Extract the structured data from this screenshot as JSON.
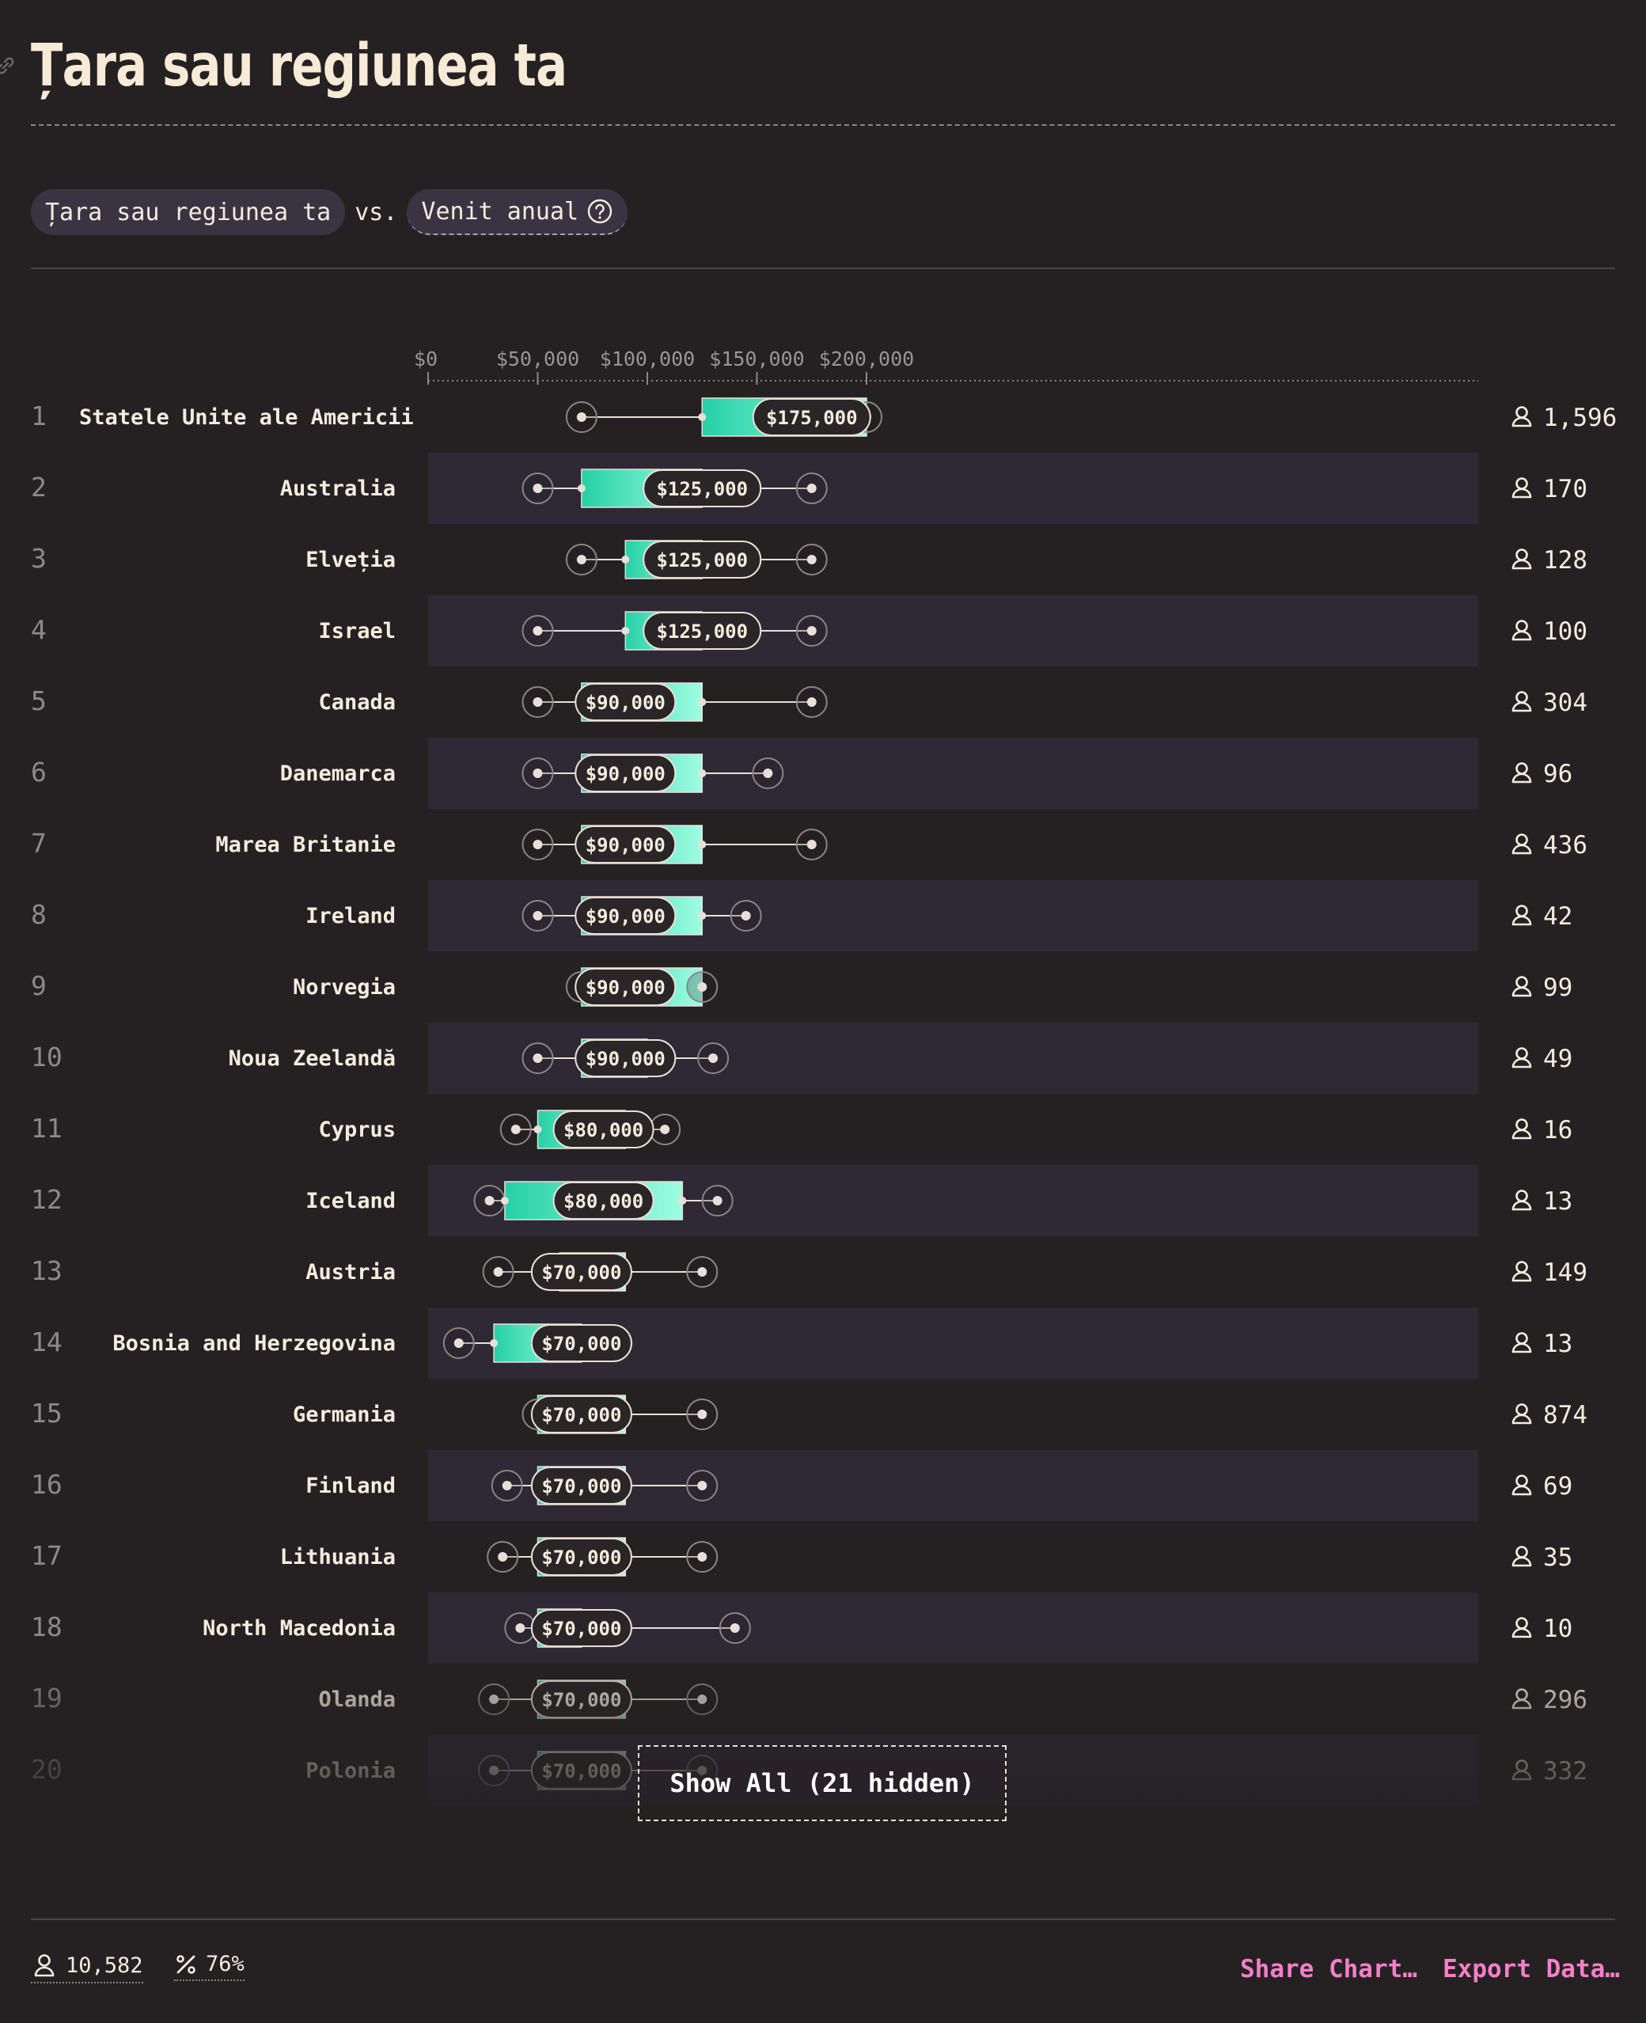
{
  "title": "Țara sau regiunea ta",
  "selectors": {
    "left": "Țara sau regiunea ta",
    "vs": "vs.",
    "right": "Venit anual"
  },
  "icons": {
    "link": "link-icon",
    "help": "help-circle-icon",
    "person": "person-icon",
    "percent": "percent-icon"
  },
  "colors": {
    "background": "#252122",
    "band": "#2f2935",
    "bar_start": "#25d0a6",
    "bar_end": "#9ffde2",
    "accent_link": "#f47fc7"
  },
  "chart_data": {
    "type": "box",
    "x_axis": {
      "min": 0,
      "max": 240000,
      "ticks": [
        0,
        50000,
        100000,
        150000,
        200000
      ],
      "tick_labels": [
        "$0",
        "$50,000",
        "$100,000",
        "$150,000",
        "$200,000"
      ]
    },
    "rows": [
      {
        "rank": "1",
        "name": "Statele Unite ale Americii",
        "min": 70000,
        "q1": 125000,
        "median": 175000,
        "q3": 200000,
        "max": 200000,
        "median_label": "$175,000",
        "count": "1,596"
      },
      {
        "rank": "2",
        "name": "Australia",
        "min": 50000,
        "q1": 70000,
        "median": 125000,
        "q3": 125000,
        "max": 175000,
        "median_label": "$125,000",
        "count": "170"
      },
      {
        "rank": "3",
        "name": "Elveția",
        "min": 70000,
        "q1": 90000,
        "median": 125000,
        "q3": 125000,
        "max": 175000,
        "median_label": "$125,000",
        "count": "128"
      },
      {
        "rank": "4",
        "name": "Israel",
        "min": 50000,
        "q1": 90000,
        "median": 125000,
        "q3": 125000,
        "max": 175000,
        "median_label": "$125,000",
        "count": "100"
      },
      {
        "rank": "5",
        "name": "Canada",
        "min": 50000,
        "q1": 70000,
        "median": 90000,
        "q3": 125000,
        "max": 175000,
        "median_label": "$90,000",
        "count": "304"
      },
      {
        "rank": "6",
        "name": "Danemarca",
        "min": 50000,
        "q1": 70000,
        "median": 90000,
        "q3": 125000,
        "max": 155000,
        "median_label": "$90,000",
        "count": "96"
      },
      {
        "rank": "7",
        "name": "Marea Britanie",
        "min": 50000,
        "q1": 70000,
        "median": 90000,
        "q3": 125000,
        "max": 175000,
        "median_label": "$90,000",
        "count": "436"
      },
      {
        "rank": "8",
        "name": "Ireland",
        "min": 50000,
        "q1": 70000,
        "median": 90000,
        "q3": 125000,
        "max": 145000,
        "median_label": "$90,000",
        "count": "42"
      },
      {
        "rank": "9",
        "name": "Norvegia",
        "min": 70000,
        "q1": 70000,
        "median": 90000,
        "q3": 125000,
        "max": 125000,
        "median_label": "$90,000",
        "count": "99"
      },
      {
        "rank": "10",
        "name": "Noua Zeelandă",
        "min": 50000,
        "q1": 70000,
        "median": 90000,
        "q3": 100000,
        "max": 130000,
        "median_label": "$90,000",
        "count": "49"
      },
      {
        "rank": "11",
        "name": "Cyprus",
        "min": 40000,
        "q1": 50000,
        "median": 80000,
        "q3": 90000,
        "max": 108000,
        "median_label": "$80,000",
        "count": "16"
      },
      {
        "rank": "12",
        "name": "Iceland",
        "min": 28000,
        "q1": 35000,
        "median": 80000,
        "q3": 116000,
        "max": 132000,
        "median_label": "$80,000",
        "count": "13"
      },
      {
        "rank": "13",
        "name": "Austria",
        "min": 32000,
        "q1": 60000,
        "median": 70000,
        "q3": 90000,
        "max": 125000,
        "median_label": "$70,000",
        "count": "149"
      },
      {
        "rank": "14",
        "name": "Bosnia and Herzegovina",
        "min": 14000,
        "q1": 30000,
        "median": 70000,
        "q3": 70000,
        "max": 86000,
        "median_label": "$70,000",
        "count": "13"
      },
      {
        "rank": "15",
        "name": "Germania",
        "min": 50000,
        "q1": 50000,
        "median": 70000,
        "q3": 90000,
        "max": 125000,
        "median_label": "$70,000",
        "count": "874"
      },
      {
        "rank": "16",
        "name": "Finland",
        "min": 36000,
        "q1": 50000,
        "median": 70000,
        "q3": 90000,
        "max": 125000,
        "median_label": "$70,000",
        "count": "69"
      },
      {
        "rank": "17",
        "name": "Lithuania",
        "min": 34000,
        "q1": 50000,
        "median": 70000,
        "q3": 90000,
        "max": 125000,
        "median_label": "$70,000",
        "count": "35"
      },
      {
        "rank": "18",
        "name": "North Macedonia",
        "min": 42000,
        "q1": 50000,
        "median": 70000,
        "q3": 70000,
        "max": 140000,
        "median_label": "$70,000",
        "count": "10"
      },
      {
        "rank": "19",
        "name": "Olanda",
        "min": 30000,
        "q1": 50000,
        "median": 70000,
        "q3": 90000,
        "max": 125000,
        "median_label": "$70,000",
        "count": "296"
      },
      {
        "rank": "20",
        "name": "Polonia",
        "min": 30000,
        "q1": 50000,
        "median": 70000,
        "q3": 90000,
        "max": 125000,
        "median_label": "$70,000",
        "count": "332"
      }
    ]
  },
  "show_all_label": "Show All (21 hidden)",
  "footer": {
    "respondents": "10,582",
    "percent": "76%",
    "share": "Share Chart…",
    "export": "Export Data…"
  }
}
